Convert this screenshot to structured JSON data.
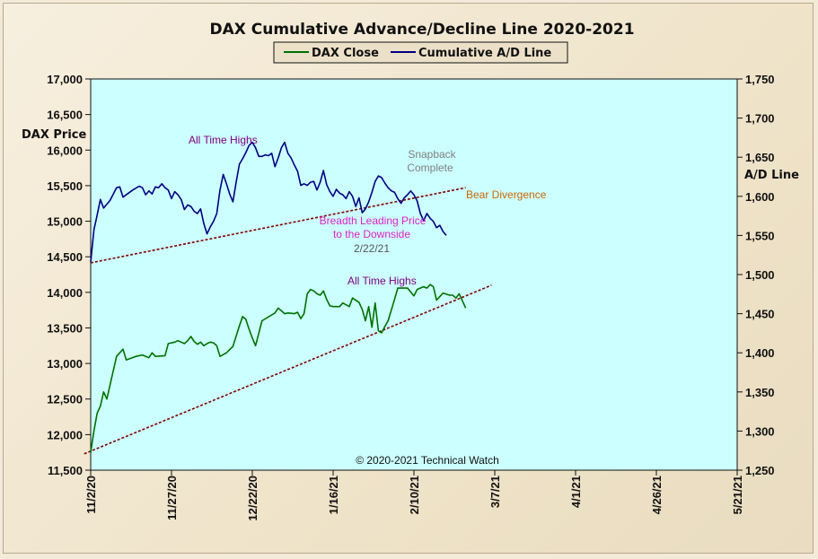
{
  "chart_data": {
    "type": "line",
    "title": "DAX Cumulative  Advance/Decline Line 2020-2021",
    "ylabel_left": "DAX Price",
    "ylabel_right": "A/D Line",
    "ylim_left": [
      11500,
      17000
    ],
    "ylim_right": [
      1250,
      1750
    ],
    "y_ticks_left": [
      "11,500",
      "12,000",
      "12,500",
      "13,000",
      "13,500",
      "14,000",
      "14,500",
      "15,000",
      "15,500",
      "16,000",
      "16,500",
      "17,000"
    ],
    "y_ticks_right": [
      "1,250",
      "1,300",
      "1,350",
      "1,400",
      "1,450",
      "1,500",
      "1,550",
      "1,600",
      "1,650",
      "1,700",
      "1,750"
    ],
    "x_ticks": [
      "11/2/20",
      "11/27/20",
      "12/22/20",
      "1/16/21",
      "2/10/21",
      "3/7/21",
      "4/1/21",
      "4/26/21",
      "5/21/21"
    ],
    "x_range_days": [
      0,
      200
    ],
    "legend": [
      "DAX Close",
      "Cumulative A/D Line"
    ],
    "legend_position": "top-center",
    "background": "#ccffff",
    "colors": {
      "dax": "#007000",
      "ad": "#000080",
      "trend": "#800000"
    },
    "series": [
      {
        "name": "DAX Close",
        "axis": "left",
        "points": [
          [
            0,
            11750
          ],
          [
            1,
            12050
          ],
          [
            2,
            12300
          ],
          [
            3,
            12400
          ],
          [
            4,
            12600
          ],
          [
            5,
            12500
          ],
          [
            7,
            12900
          ],
          [
            8,
            13100
          ],
          [
            9,
            13150
          ],
          [
            10,
            13200
          ],
          [
            11,
            13050
          ],
          [
            14,
            13100
          ],
          [
            16,
            13120
          ],
          [
            18,
            13080
          ],
          [
            19,
            13150
          ],
          [
            20,
            13100
          ],
          [
            23,
            13110
          ],
          [
            24,
            13280
          ],
          [
            25,
            13290
          ],
          [
            26,
            13300
          ],
          [
            27,
            13320
          ],
          [
            28,
            13300
          ],
          [
            29,
            13280
          ],
          [
            30,
            13320
          ],
          [
            31,
            13380
          ],
          [
            32,
            13310
          ],
          [
            33,
            13270
          ],
          [
            34,
            13300
          ],
          [
            35,
            13250
          ],
          [
            36,
            13280
          ],
          [
            37,
            13300
          ],
          [
            38,
            13290
          ],
          [
            39,
            13250
          ],
          [
            40,
            13100
          ],
          [
            42,
            13150
          ],
          [
            44,
            13240
          ],
          [
            46,
            13530
          ],
          [
            47,
            13660
          ],
          [
            48,
            13620
          ],
          [
            49,
            13480
          ],
          [
            50,
            13360
          ],
          [
            51,
            13250
          ],
          [
            53,
            13600
          ],
          [
            57,
            13710
          ],
          [
            58,
            13780
          ],
          [
            59,
            13740
          ],
          [
            60,
            13700
          ],
          [
            61,
            13710
          ],
          [
            63,
            13700
          ],
          [
            64,
            13720
          ],
          [
            65,
            13630
          ],
          [
            66,
            13700
          ],
          [
            67,
            13980
          ],
          [
            68,
            14040
          ],
          [
            69,
            14020
          ],
          [
            70,
            13980
          ],
          [
            71,
            13960
          ],
          [
            72,
            14020
          ],
          [
            73,
            13900
          ],
          [
            74,
            13810
          ],
          [
            75,
            13800
          ],
          [
            77,
            13800
          ],
          [
            78,
            13850
          ],
          [
            80,
            13800
          ],
          [
            81,
            13920
          ],
          [
            83,
            13860
          ],
          [
            84,
            13760
          ],
          [
            85,
            13600
          ],
          [
            86,
            13800
          ],
          [
            87,
            13510
          ],
          [
            88,
            13850
          ],
          [
            89,
            13460
          ],
          [
            90,
            13430
          ],
          [
            91,
            13520
          ],
          [
            92,
            13600
          ],
          [
            94,
            13900
          ],
          [
            95,
            14060
          ],
          [
            98,
            14060
          ],
          [
            100,
            13950
          ],
          [
            101,
            14040
          ],
          [
            103,
            14080
          ],
          [
            104,
            14060
          ],
          [
            105,
            14110
          ],
          [
            106,
            14080
          ],
          [
            107,
            13890
          ],
          [
            108,
            13940
          ],
          [
            109,
            13990
          ],
          [
            111,
            13960
          ],
          [
            112,
            13960
          ],
          [
            113,
            13920
          ],
          [
            114,
            13980
          ],
          [
            115,
            13880
          ],
          [
            116,
            13780
          ]
        ]
      },
      {
        "name": "Cumulative A/D Line",
        "axis": "right",
        "points": [
          [
            0,
            1516
          ],
          [
            1,
            1557
          ],
          [
            2,
            1576
          ],
          [
            3,
            1596
          ],
          [
            4,
            1585
          ],
          [
            6,
            1595
          ],
          [
            8,
            1611
          ],
          [
            9,
            1612
          ],
          [
            10,
            1599
          ],
          [
            13,
            1608
          ],
          [
            15,
            1613
          ],
          [
            16,
            1611
          ],
          [
            17,
            1602
          ],
          [
            18,
            1607
          ],
          [
            19,
            1603
          ],
          [
            20,
            1612
          ],
          [
            21,
            1611
          ],
          [
            22,
            1616
          ],
          [
            23,
            1611
          ],
          [
            24,
            1608
          ],
          [
            25,
            1597
          ],
          [
            26,
            1606
          ],
          [
            27,
            1602
          ],
          [
            28,
            1596
          ],
          [
            29,
            1583
          ],
          [
            30,
            1589
          ],
          [
            31,
            1587
          ],
          [
            32,
            1581
          ],
          [
            33,
            1578
          ],
          [
            34,
            1584
          ],
          [
            35,
            1565
          ],
          [
            36,
            1552
          ],
          [
            37,
            1561
          ],
          [
            38,
            1568
          ],
          [
            39,
            1578
          ],
          [
            40,
            1608
          ],
          [
            41,
            1628
          ],
          [
            42,
            1616
          ],
          [
            43,
            1603
          ],
          [
            44,
            1593
          ],
          [
            45,
            1618
          ],
          [
            46,
            1641
          ],
          [
            47,
            1648
          ],
          [
            48,
            1656
          ],
          [
            49,
            1665
          ],
          [
            50,
            1669
          ],
          [
            51,
            1662
          ],
          [
            52,
            1651
          ],
          [
            53,
            1651
          ],
          [
            54,
            1653
          ],
          [
            55,
            1652
          ],
          [
            56,
            1655
          ],
          [
            57,
            1638
          ],
          [
            58,
            1649
          ],
          [
            59,
            1662
          ],
          [
            60,
            1669
          ],
          [
            61,
            1655
          ],
          [
            62,
            1649
          ],
          [
            63,
            1640
          ],
          [
            64,
            1632
          ],
          [
            65,
            1614
          ],
          [
            66,
            1616
          ],
          [
            67,
            1614
          ],
          [
            68,
            1618
          ],
          [
            69,
            1619
          ],
          [
            70,
            1608
          ],
          [
            71,
            1618
          ],
          [
            72,
            1633
          ],
          [
            73,
            1615
          ],
          [
            74,
            1606
          ],
          [
            75,
            1600
          ],
          [
            76,
            1609
          ],
          [
            77,
            1604
          ],
          [
            78,
            1602
          ],
          [
            79,
            1597
          ],
          [
            80,
            1606
          ],
          [
            81,
            1600
          ],
          [
            82,
            1587
          ],
          [
            83,
            1598
          ],
          [
            84,
            1579
          ],
          [
            85,
            1584
          ],
          [
            86,
            1593
          ],
          [
            87,
            1605
          ],
          [
            88,
            1619
          ],
          [
            89,
            1626
          ],
          [
            90,
            1624
          ],
          [
            91,
            1617
          ],
          [
            92,
            1611
          ],
          [
            93,
            1607
          ],
          [
            94,
            1605
          ],
          [
            95,
            1597
          ],
          [
            96,
            1591
          ],
          [
            97,
            1598
          ],
          [
            98,
            1602
          ],
          [
            99,
            1607
          ],
          [
            100,
            1602
          ],
          [
            101,
            1594
          ],
          [
            102,
            1578
          ],
          [
            103,
            1569
          ],
          [
            104,
            1578
          ],
          [
            105,
            1572
          ],
          [
            106,
            1568
          ],
          [
            107,
            1560
          ],
          [
            108,
            1563
          ],
          [
            109,
            1555
          ],
          [
            110,
            1550
          ]
        ]
      }
    ],
    "trendlines": [
      {
        "axis": "right",
        "from": [
          0,
          1515
        ],
        "to": [
          116,
          1611
        ]
      },
      {
        "axis": "left",
        "from": [
          -2,
          11730
        ],
        "to": [
          124,
          14100
        ]
      }
    ],
    "annotations": {
      "ath_top": "All Time Highs",
      "snapback_1": "Snapback",
      "snapback_2": "Complete",
      "bear_div": "Bear Divergence",
      "breadth_1": "Breadth Leading Price",
      "breadth_2": "to the Downside",
      "date": "2/22/21",
      "ath_bottom": "All Time Highs",
      "copyright": "© 2020-2021  Technical Watch"
    }
  }
}
